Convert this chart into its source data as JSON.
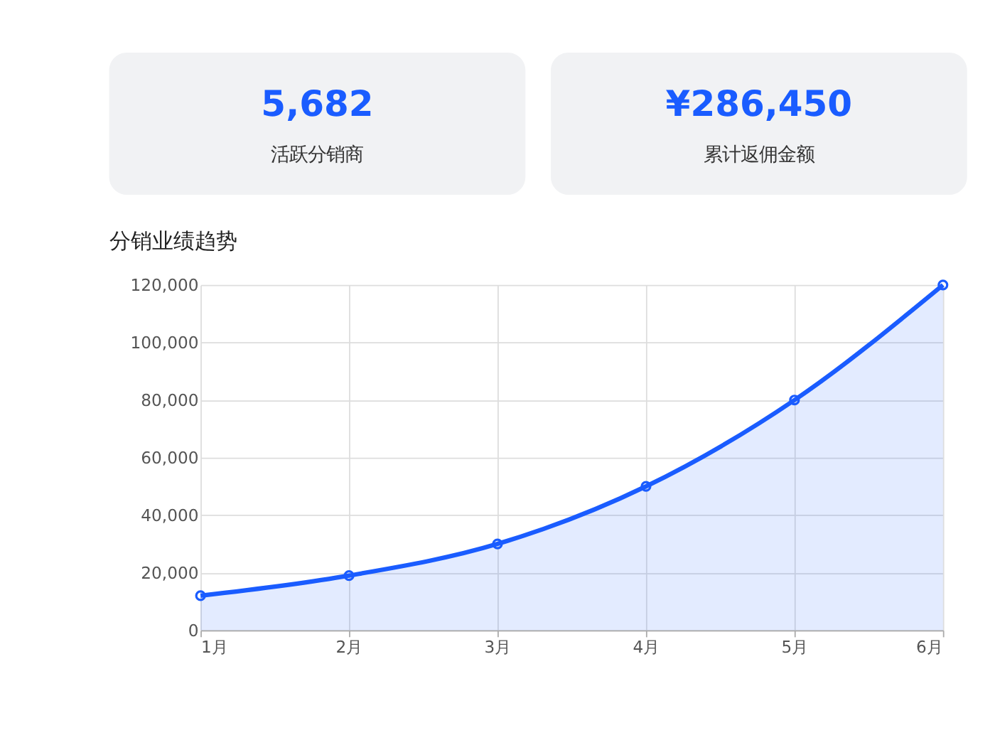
{
  "chart_data": [
    {
      "type": "other",
      "annotations": [
        "5,682",
        "活跃分销商",
        "¥286,450",
        "累计返佣金额"
      ]
    },
    {
      "type": "area",
      "title": "分销业绩趋势",
      "categories": [
        "1月",
        "2月",
        "3月",
        "4月",
        "5月",
        "6月"
      ],
      "series": [
        {
          "color": "#1a5cff",
          "values": [
            12000,
            19000,
            30000,
            50000,
            80000,
            120000
          ]
        }
      ],
      "ylim": [
        0,
        120000
      ],
      "yticks": [
        0,
        {
          "value": 20000,
          "label": "20,000"
        },
        {
          "value": 40000,
          "label": "40,000"
        },
        {
          "value": 60000,
          "label": "60,000"
        },
        {
          "value": 80000,
          "label": "80,000"
        },
        {
          "value": 100000,
          "label": "100,000"
        },
        {
          "value": 120000,
          "label": "120,000"
        }
      ],
      "grid": true,
      "marker": "circle",
      "line_style": "solid"
    }
  ]
}
